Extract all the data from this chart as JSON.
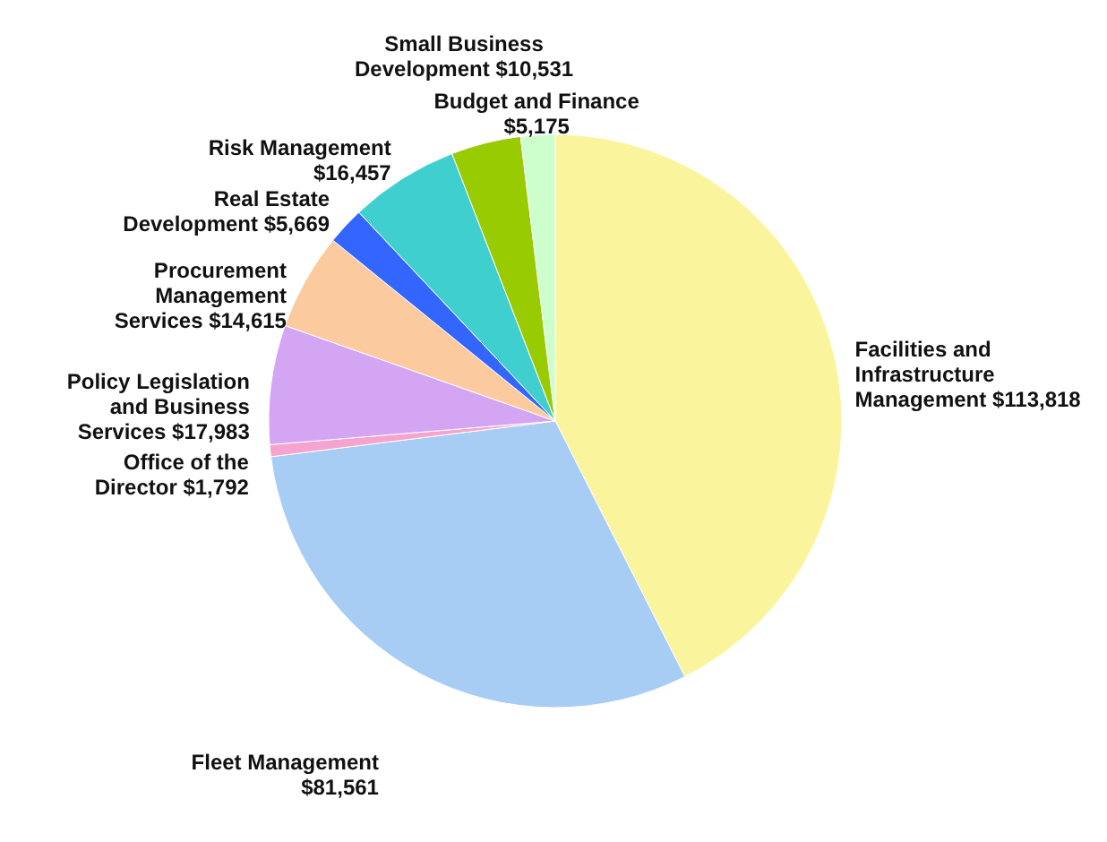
{
  "chart_data": {
    "type": "pie",
    "categories": [
      "Facilities and Infrastructure Management",
      "Fleet Management",
      "Office of the Director",
      "Policy Legislation and Business Services",
      "Procurement Management Services",
      "Real Estate Development",
      "Risk Management",
      "Small Business Development",
      "Budget and Finance"
    ],
    "values": [
      113818,
      81561,
      1792,
      17983,
      14615,
      5669,
      16457,
      10531,
      5175
    ],
    "value_labels": [
      "$113,818",
      "$81,561",
      "$1,792",
      "$17,983",
      "$14,615",
      "$5,669",
      "$16,457",
      "$10,531",
      "$5,175"
    ],
    "colors": [
      "#faf59c",
      "#a8cdf5",
      "#f5a3cf",
      "#d4a5f3",
      "#fbcb9f",
      "#3366ff",
      "#3fcfcf",
      "#99cc00",
      "#ccffcc"
    ],
    "legend": false
  }
}
